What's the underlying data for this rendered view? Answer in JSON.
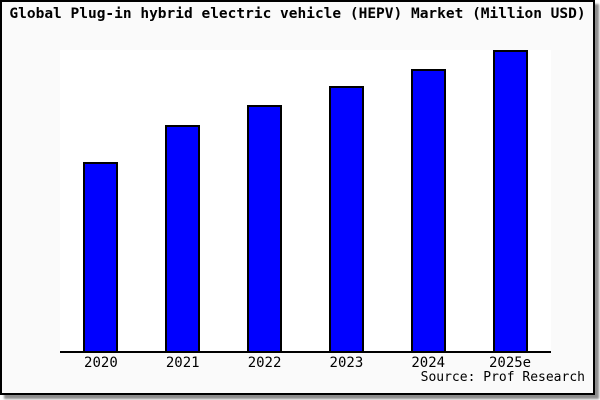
{
  "window": {
    "title": "Global Plug-in hybrid electric vehicle (HEPV) Market (Million USD)",
    "source_note": "Source: Prof Research"
  },
  "colors": {
    "bar_fill": "#0000ff",
    "bar_border": "#000000",
    "plot_background": "#ffffff",
    "canvas_background": "#fafafa",
    "frame_border": "#000000",
    "text": "#000000"
  },
  "chart_data": {
    "type": "bar",
    "title": "Global Plug-in hybrid electric vehicle (HEPV) Market (Million USD)",
    "categories": [
      "2020",
      "2021",
      "2022",
      "2023",
      "2024",
      "2025e"
    ],
    "values": [
      62.8,
      75.1,
      81.7,
      88.0,
      93.7,
      100.0
    ],
    "value_note": "relative index estimated from bar heights; y-axis has no tick labels; 2025e bar = 100 (tallest, touches plot top)",
    "xlabel": "",
    "ylabel": "",
    "ylim": [
      0,
      100
    ],
    "grid": false,
    "legend": false,
    "y_axis_line": false,
    "x_axis_line": true,
    "source_note": "Source: Prof Research"
  }
}
